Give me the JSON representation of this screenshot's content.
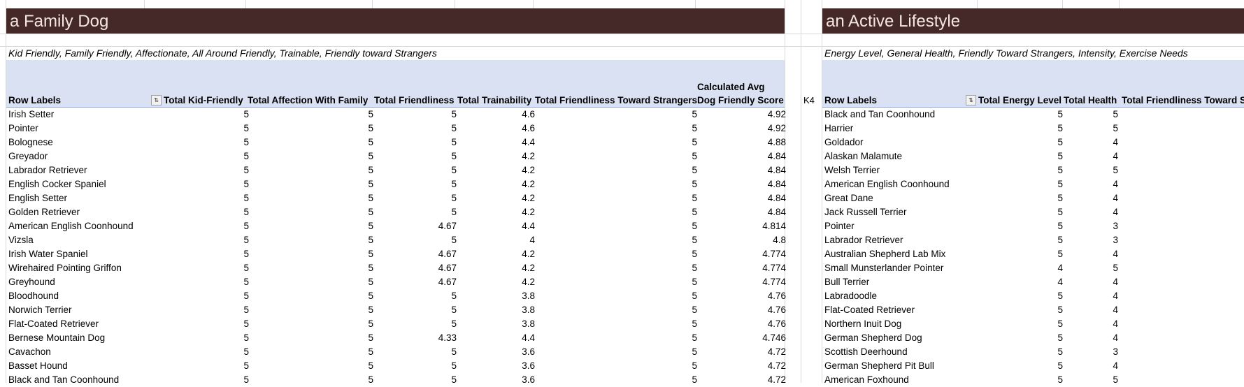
{
  "left": {
    "title": "a Family Dog",
    "subtitle": "Kid Friendly, Family Friendly, Affectionate, All Around Friendly, Trainable, Friendly toward Strangers",
    "headers": [
      "Row Labels",
      "Total Kid-Friendly",
      "Total Affection With Family",
      "Total Friendliness",
      "Total Trainability",
      "Total Friendliness Toward Strangers",
      "Calculated Avg Dog Friendly Score"
    ],
    "filter_icon": "sort-filter-icon",
    "rows": [
      [
        "Irish Setter",
        "5",
        "5",
        "5",
        "4.6",
        "5",
        "4.92"
      ],
      [
        "Pointer",
        "5",
        "5",
        "5",
        "4.6",
        "5",
        "4.92"
      ],
      [
        "Bolognese",
        "5",
        "5",
        "5",
        "4.4",
        "5",
        "4.88"
      ],
      [
        "Greyador",
        "5",
        "5",
        "5",
        "4.2",
        "5",
        "4.84"
      ],
      [
        "Labrador Retriever",
        "5",
        "5",
        "5",
        "4.2",
        "5",
        "4.84"
      ],
      [
        "English Cocker Spaniel",
        "5",
        "5",
        "5",
        "4.2",
        "5",
        "4.84"
      ],
      [
        "English Setter",
        "5",
        "5",
        "5",
        "4.2",
        "5",
        "4.84"
      ],
      [
        "Golden Retriever",
        "5",
        "5",
        "5",
        "4.2",
        "5",
        "4.84"
      ],
      [
        "American English Coonhound",
        "5",
        "5",
        "4.67",
        "4.4",
        "5",
        "4.814"
      ],
      [
        "Vizsla",
        "5",
        "5",
        "5",
        "4",
        "5",
        "4.8"
      ],
      [
        "Irish Water Spaniel",
        "5",
        "5",
        "4.67",
        "4.2",
        "5",
        "4.774"
      ],
      [
        "Wirehaired Pointing Griffon",
        "5",
        "5",
        "4.67",
        "4.2",
        "5",
        "4.774"
      ],
      [
        "Greyhound",
        "5",
        "5",
        "4.67",
        "4.2",
        "5",
        "4.774"
      ],
      [
        "Bloodhound",
        "5",
        "5",
        "5",
        "3.8",
        "5",
        "4.76"
      ],
      [
        "Norwich Terrier",
        "5",
        "5",
        "5",
        "3.8",
        "5",
        "4.76"
      ],
      [
        "Flat-Coated Retriever",
        "5",
        "5",
        "5",
        "3.8",
        "5",
        "4.76"
      ],
      [
        "Bernese Mountain Dog",
        "5",
        "5",
        "4.33",
        "4.4",
        "5",
        "4.746"
      ],
      [
        "Cavachon",
        "5",
        "5",
        "5",
        "3.6",
        "5",
        "4.72"
      ],
      [
        "Basset Hound",
        "5",
        "5",
        "5",
        "3.6",
        "5",
        "4.72"
      ],
      [
        "Black and Tan Coonhound",
        "5",
        "5",
        "5",
        "3.6",
        "5",
        "4.72"
      ]
    ]
  },
  "cell_ref": "K4",
  "right": {
    "title": "an Active Lifestyle",
    "subtitle": "Energy Level, General Health, Friendly Toward Strangers, Intensity, Exercise Needs",
    "headers": [
      "Row Labels",
      "Total Energy Level",
      "Total Health",
      "Total Friendliness Toward St"
    ],
    "filter_icon": "sort-filter-icon",
    "rows": [
      [
        "Black and Tan Coonhound",
        "5",
        "5"
      ],
      [
        "Harrier",
        "5",
        "5"
      ],
      [
        "Goldador",
        "5",
        "4"
      ],
      [
        "Alaskan Malamute",
        "5",
        "4"
      ],
      [
        "Welsh Terrier",
        "5",
        "5"
      ],
      [
        "American English Coonhound",
        "5",
        "4"
      ],
      [
        "Great Dane",
        "5",
        "4"
      ],
      [
        "Jack Russell Terrier",
        "5",
        "4"
      ],
      [
        "Pointer",
        "5",
        "3"
      ],
      [
        "Labrador Retriever",
        "5",
        "3"
      ],
      [
        "Australian Shepherd Lab Mix",
        "5",
        "4"
      ],
      [
        "Small Munsterlander Pointer",
        "4",
        "5"
      ],
      [
        "Bull Terrier",
        "4",
        "4"
      ],
      [
        "Labradoodle",
        "5",
        "4"
      ],
      [
        "Flat-Coated Retriever",
        "5",
        "4"
      ],
      [
        "Northern Inuit Dog",
        "5",
        "4"
      ],
      [
        "German Shepherd Dog",
        "5",
        "4"
      ],
      [
        "Scottish Deerhound",
        "5",
        "3"
      ],
      [
        "German Shepherd Pit Bull",
        "5",
        "4"
      ],
      [
        "American Foxhound",
        "5",
        "5"
      ]
    ]
  },
  "colors": {
    "banner": "#452929",
    "banner_text": "#f4e6e1",
    "header_band": "#d9e1f2"
  }
}
